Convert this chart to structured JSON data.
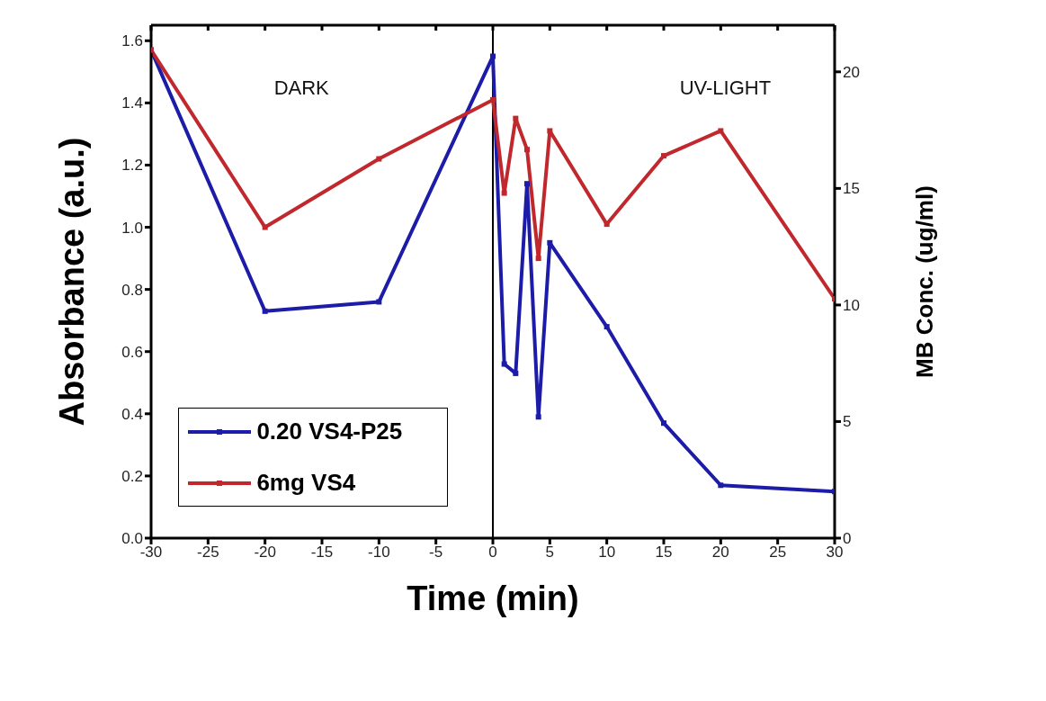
{
  "chart_data": {
    "type": "line",
    "xlabel": "Time (min)",
    "ylabel": "Absorbance (a.u.)",
    "y2label": "MB Conc.  (ug/ml)",
    "x": [
      -30,
      -20,
      -10,
      0,
      1,
      2,
      3,
      4,
      5,
      10,
      15,
      20,
      30
    ],
    "series": [
      {
        "name": "0.20 VS4-P25",
        "color": "#1c1ca8",
        "values": [
          1.57,
          0.73,
          0.76,
          1.55,
          0.56,
          0.53,
          1.14,
          0.39,
          0.95,
          0.68,
          0.37,
          0.17,
          0.15
        ]
      },
      {
        "name": "6mg VS4",
        "color": "#c0282d",
        "values": [
          1.57,
          1.0,
          1.22,
          1.41,
          1.11,
          1.35,
          1.25,
          0.9,
          1.31,
          1.01,
          1.23,
          1.31,
          0.77
        ]
      }
    ],
    "xlim": [
      -30,
      30
    ],
    "xticks": [
      -30,
      -25,
      -20,
      -15,
      -10,
      -5,
      0,
      5,
      10,
      15,
      20,
      25,
      30
    ],
    "ylim": [
      0,
      1.65
    ],
    "yticks": [
      {
        "value": 0,
        "label": "0.0"
      },
      0.2,
      0.4,
      0.6,
      0.8,
      {
        "value": 1,
        "label": "1.0"
      },
      1.2,
      1.4,
      1.6
    ],
    "y2lim": [
      0,
      22
    ],
    "y2ticks": [
      0,
      5,
      10,
      15,
      20
    ],
    "ref_lines": [
      {
        "axis": "x",
        "value": 0,
        "color": "#000000"
      }
    ],
    "annotations": [
      "DARK",
      "UV-LIGHT"
    ],
    "marker": "square",
    "line_style": "solid",
    "legend": "bottom left"
  }
}
